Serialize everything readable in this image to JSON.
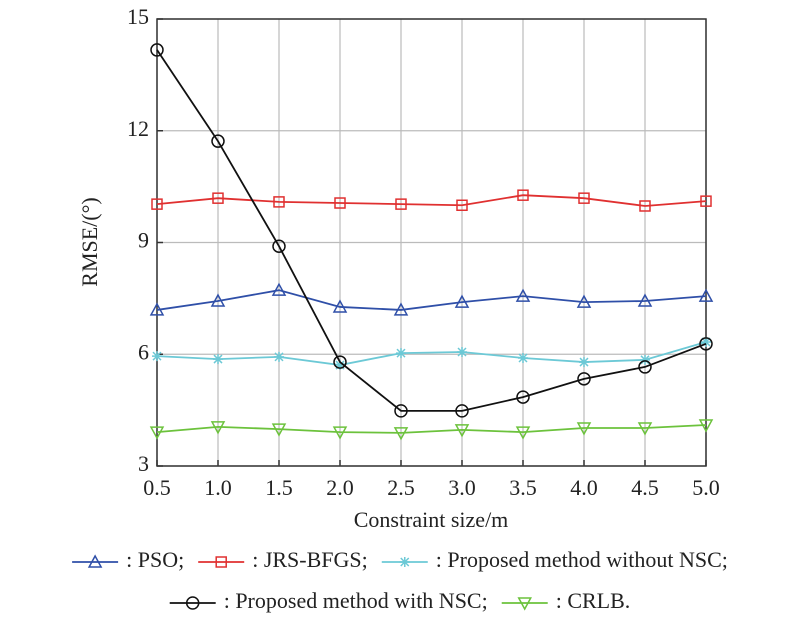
{
  "chart_data": {
    "type": "line",
    "xlabel": "Constraint size/m",
    "ylabel": "RMSE/(°)",
    "x": [
      0.5,
      1.0,
      1.5,
      2.0,
      2.5,
      3.0,
      3.5,
      4.0,
      4.5,
      5.0
    ],
    "xlim": [
      0.5,
      5.0
    ],
    "xticks": [
      0.5,
      {
        "value": 1,
        "label": "1.0"
      },
      1.5,
      {
        "value": 2,
        "label": "2.0"
      },
      2.5,
      {
        "value": 3,
        "label": "3.0"
      },
      3.5,
      {
        "value": 4,
        "label": "4.0"
      },
      4.5,
      {
        "value": 5,
        "label": "5.0"
      }
    ],
    "ylim": [
      3,
      15
    ],
    "yticks": [
      3,
      6,
      9,
      12,
      15
    ],
    "grid": true,
    "series": [
      {
        "name": ": PSO;",
        "color": "#2f4fa8",
        "marker": "triangle-up",
        "values": [
          7.19,
          7.43,
          7.72,
          7.27,
          7.19,
          7.4,
          7.56,
          7.4,
          7.43,
          7.56
        ]
      },
      {
        "name": ": JRS-BFGS;",
        "color": "#e03030",
        "marker": "square",
        "values": [
          10.03,
          10.19,
          10.09,
          10.06,
          10.03,
          10.0,
          10.27,
          10.19,
          9.98,
          10.11
        ]
      },
      {
        "name": ": Proposed method without NSC;",
        "color": "#6cc9d6",
        "marker": "asterisk",
        "values": [
          5.95,
          5.87,
          5.93,
          5.71,
          6.03,
          6.06,
          5.9,
          5.79,
          5.85,
          6.33
        ]
      },
      {
        "name": ": Proposed method with NSC;",
        "color": "#111111",
        "marker": "circle",
        "values": [
          14.17,
          11.72,
          8.9,
          5.79,
          4.48,
          4.48,
          4.85,
          5.34,
          5.66,
          6.28
        ]
      },
      {
        "name": ": CRLB.",
        "color": "#6cc23c",
        "marker": "triangle-down",
        "values": [
          3.91,
          4.05,
          3.99,
          3.91,
          3.89,
          3.97,
          3.91,
          4.02,
          4.02,
          4.1
        ]
      }
    ]
  }
}
